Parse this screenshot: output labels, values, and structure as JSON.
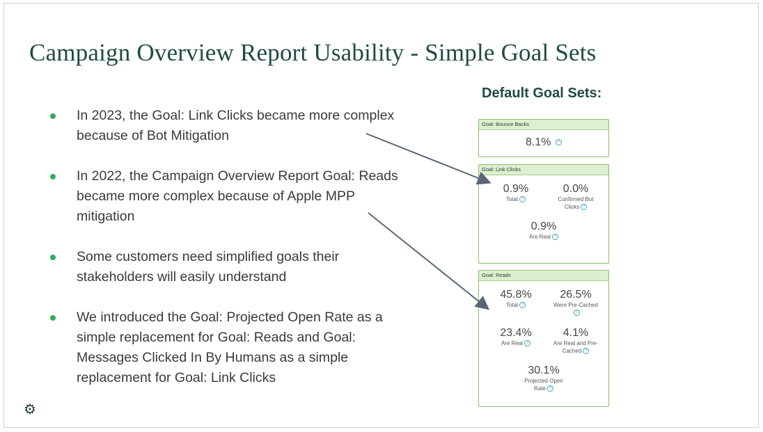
{
  "slide": {
    "title": "Campaign Overview Report Usability - Simple Goal Sets",
    "bullets": [
      {
        "line1": "In 2023, the Goal: Link Clicks became more complex",
        "line2": "because of Bot Mitigation",
        "line3": ""
      },
      {
        "line1": "In 2022, the Campaign Overview Report Goal: Reads",
        "line2": "became more complex because of Apple MPP",
        "line3": "mitigation"
      },
      {
        "line1": "Some customers need simplified goals their",
        "line2": "stakeholders will easily understand",
        "line3": ""
      },
      {
        "line1": "We introduced the Goal: Projected Open Rate as a",
        "line2": "simple replacement for Goal: Reads and Goal:",
        "line3": "Messages Clicked In By Humans as a simple",
        "line4": "replacement for Goal: Link Clicks"
      }
    ],
    "goal_sets_heading": "Default Goal Sets:",
    "cards": {
      "bounce": {
        "header": "Goal: Bounce Backs",
        "metrics": [
          {
            "value": "8.1%",
            "label": ""
          }
        ]
      },
      "link_clicks": {
        "header": "Goal: Link Clicks",
        "metrics": [
          {
            "value": "0.9%",
            "label": "Total"
          },
          {
            "value": "0.0%",
            "label1": "Confirmed Bot",
            "label2": "Clicks"
          },
          {
            "value": "0.9%",
            "label": "Are Real"
          }
        ]
      },
      "reads": {
        "header": "Goal: Reads",
        "metrics": [
          {
            "value": "45.8%",
            "label": "Total"
          },
          {
            "value": "26.5%",
            "label": "Were Pre-Cached"
          },
          {
            "value": "23.4%",
            "label": "Are Real"
          },
          {
            "value": "4.1%",
            "label1": "Are Real and Pre-",
            "label2": "Cached"
          },
          {
            "value": "30.1%",
            "label1": "Projected Open",
            "label2": "Rate"
          }
        ]
      }
    },
    "help_glyph": "?",
    "gear_glyph": "⚙",
    "colors": {
      "title": "#1f4a43",
      "bullet_dot": "#2fae5a",
      "card_border": "#8bbf6a",
      "card_header_bg": "#dcefcf",
      "help_icon": "#35a4c9",
      "arrow": "#5b6577"
    }
  }
}
